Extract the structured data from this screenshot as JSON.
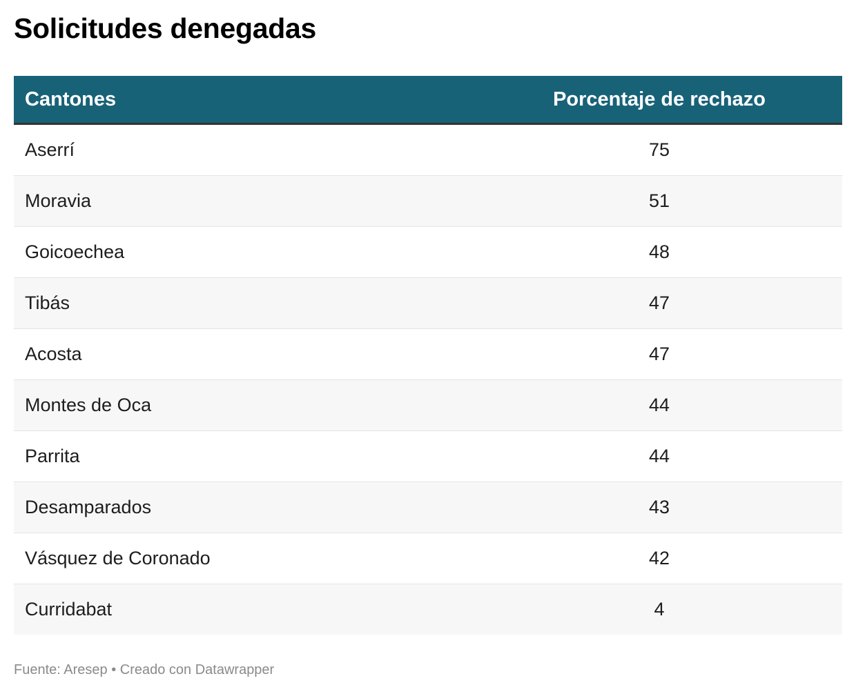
{
  "title": "Solicitudes denegadas",
  "chart_data": {
    "type": "table",
    "columns": [
      "Cantones",
      "Porcentaje de rechazo"
    ],
    "rows": [
      [
        "Aserrí",
        "75"
      ],
      [
        "Moravia",
        "51"
      ],
      [
        "Goicoechea",
        "48"
      ],
      [
        "Tibás",
        "47"
      ],
      [
        "Acosta",
        "47"
      ],
      [
        "Montes de Oca",
        "44"
      ],
      [
        "Parrita",
        "44"
      ],
      [
        "Desamparados",
        "43"
      ],
      [
        "Vásquez de Coronado",
        "42"
      ],
      [
        "Curridabat",
        "4"
      ]
    ]
  },
  "footer": "Fuente: Aresep • Creado con Datawrapper",
  "colors": {
    "header_bg": "#186278",
    "header_text": "#ffffff",
    "stripe": "#f7f7f7"
  }
}
